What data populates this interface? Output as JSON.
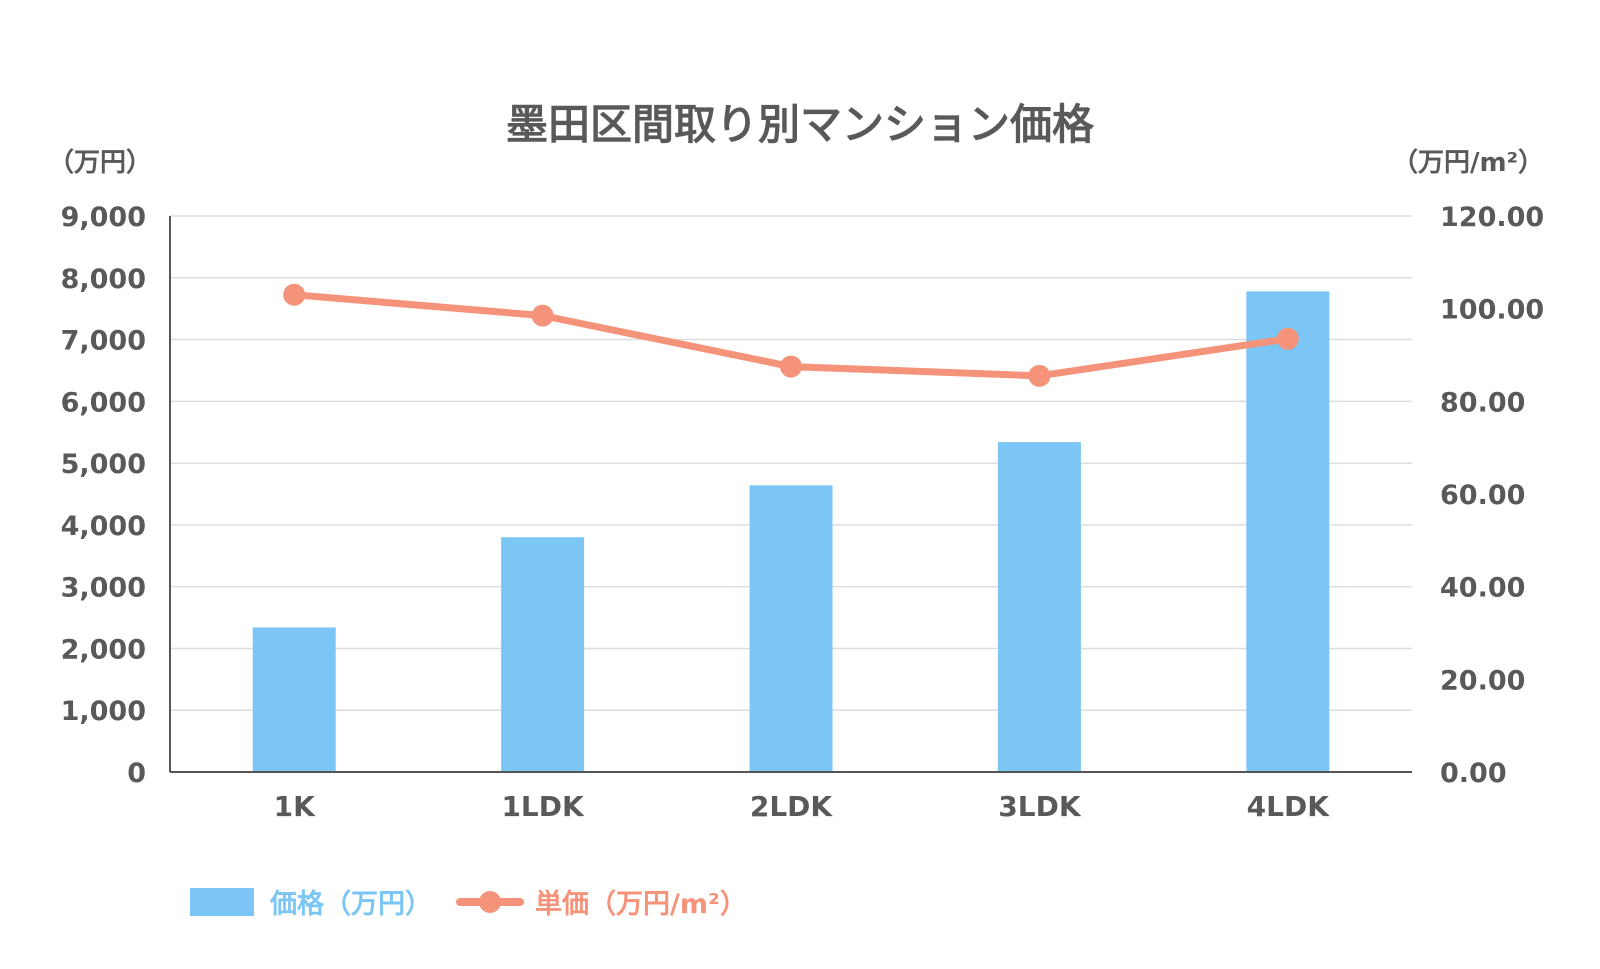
{
  "chart_data": {
    "type": "bar",
    "title": "墨田区間取り別マンション価格",
    "categories": [
      "1K",
      "1LDK",
      "2LDK",
      "3LDK",
      "4LDK"
    ],
    "series": [
      {
        "name": "価格（万円）",
        "type": "bar",
        "axis": "left",
        "color": "#7cc6f5",
        "values": [
          2340,
          3800,
          4640,
          5340,
          7780
        ]
      },
      {
        "name": "単価（万円/m²）",
        "type": "line",
        "axis": "right",
        "color": "#f5937a",
        "values": [
          103.0,
          98.5,
          87.5,
          85.5,
          93.5
        ]
      }
    ],
    "y_left": {
      "unit_label": "（万円）",
      "ylim": [
        0,
        9000
      ],
      "ticks": [
        0,
        1000,
        2000,
        3000,
        4000,
        5000,
        6000,
        7000,
        8000,
        9000
      ],
      "tick_labels": [
        "0",
        "1,000",
        "2,000",
        "3,000",
        "4,000",
        "5,000",
        "6,000",
        "7,000",
        "8,000",
        "9,000"
      ]
    },
    "y_right": {
      "unit_label": "（万円/m²）",
      "ylim": [
        0,
        120
      ],
      "ticks": [
        0,
        20,
        40,
        60,
        80,
        100,
        120
      ],
      "tick_labels": [
        "0.00",
        "20.00",
        "40.00",
        "60.00",
        "80.00",
        "100.00",
        "120.00"
      ]
    },
    "grid": true,
    "legend": "bottom-left"
  }
}
